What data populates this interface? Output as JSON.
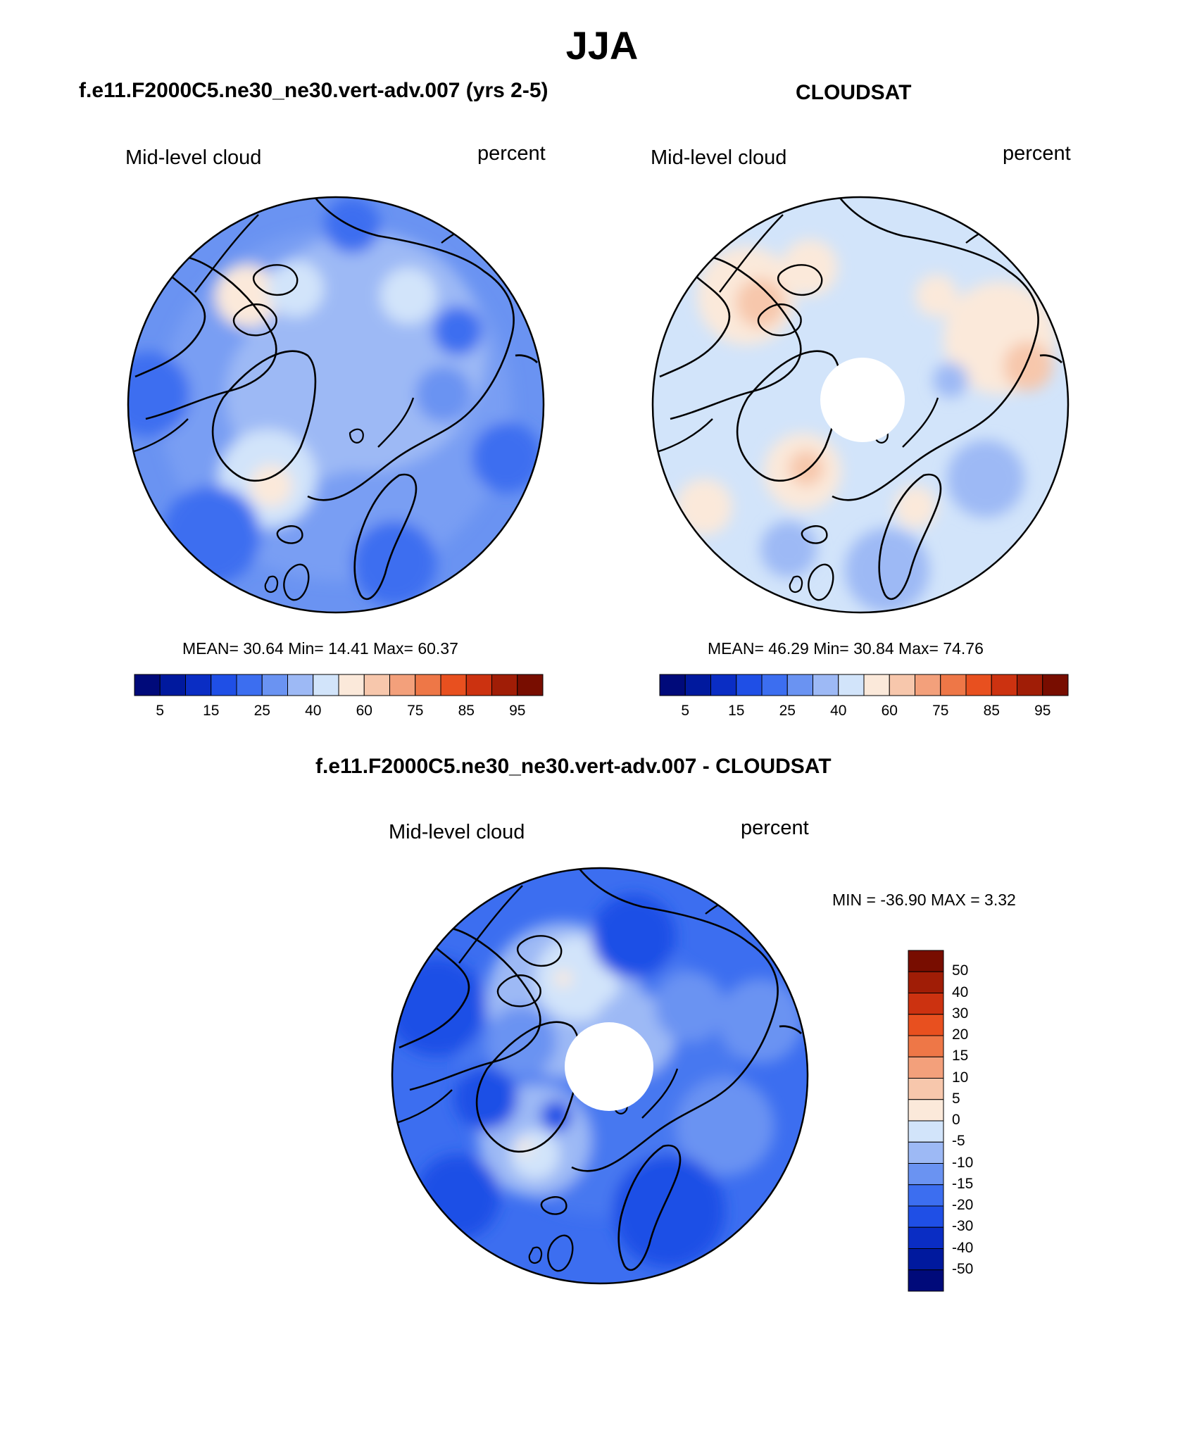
{
  "title": "JJA",
  "panels": [
    {
      "title": "f.e11.F2000C5.ne30_ne30.vert-adv.007 (yrs 2-5)",
      "left_label": "Mid-level cloud",
      "right_label": "percent",
      "stats": "MEAN=  30.64  Min=  14.41  Max=  60.37",
      "has_pole_hole": false
    },
    {
      "title": "CLOUDSAT",
      "left_label": "Mid-level cloud",
      "right_label": "percent",
      "stats": "MEAN=  46.29  Min=  30.84  Max=  74.76",
      "has_pole_hole": true
    },
    {
      "title": "f.e11.F2000C5.ne30_ne30.vert-adv.007 - CLOUDSAT",
      "left_label": "Mid-level cloud",
      "right_label": "percent",
      "stats": "MIN = -36.90 MAX =   3.32",
      "has_pole_hole": true
    }
  ],
  "abs_colorbar": {
    "colors": [
      "#000a7a",
      "#00199e",
      "#0a2dc4",
      "#1f4fe6",
      "#3c6ef0",
      "#6a93f2",
      "#9db9f5",
      "#d2e4fa",
      "#fbe9da",
      "#f7c7ac",
      "#f3a07b",
      "#ee7747",
      "#e8501f",
      "#cc3210",
      "#a01d06",
      "#780d00"
    ],
    "ticks": [
      "5",
      "15",
      "25",
      "40",
      "60",
      "75",
      "85",
      "95"
    ]
  },
  "diff_colorbar": {
    "colors": [
      "#000a7a",
      "#00199e",
      "#0a2dc4",
      "#1f4fe6",
      "#3c6ef0",
      "#6a93f2",
      "#9db9f5",
      "#d2e4fa",
      "#fbe9da",
      "#f7c7ac",
      "#f3a07b",
      "#ee7747",
      "#e8501f",
      "#cc3210",
      "#a01d06",
      "#780d00"
    ],
    "ticks": [
      "-50",
      "-40",
      "-30",
      "-20",
      "-15",
      "-10",
      "-5",
      "0",
      "5",
      "10",
      "15",
      "20",
      "30",
      "40",
      "50"
    ]
  }
}
